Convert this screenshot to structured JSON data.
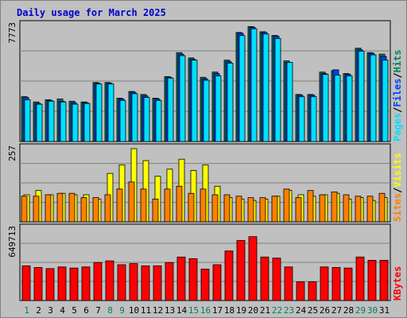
{
  "colors": {
    "frame": "#c0c0c0",
    "plot_bg": "#c0c0c0",
    "hits": "#00805a",
    "files": "#0040ff",
    "pages": "#00e0ff",
    "visits": "#ffff00",
    "sites": "#ff8000",
    "kbytes": "#ff0000",
    "title": "#0000cc",
    "weekend_label": "#00805a"
  },
  "chart_data": [
    {
      "type": "bar",
      "title": "Daily usage for March 2025",
      "ylabel_parts": [
        "Pages",
        "/",
        "Files",
        "/",
        "Hits"
      ],
      "ymax_label": "7773",
      "ylim": [
        0,
        7773
      ],
      "grid": true,
      "categories": [
        "1",
        "2",
        "3",
        "4",
        "5",
        "6",
        "7",
        "8",
        "9",
        "10",
        "11",
        "12",
        "13",
        "14",
        "15",
        "16",
        "17",
        "18",
        "19",
        "20",
        "21",
        "22",
        "23",
        "24",
        "25",
        "26",
        "27",
        "28",
        "29",
        "30",
        "31"
      ],
      "series": [
        {
          "name": "Hits",
          "values": [
            3000,
            2650,
            2800,
            2850,
            2700,
            2650,
            3950,
            3950,
            2900,
            3350,
            3150,
            2900,
            4350,
            5950,
            5600,
            4300,
            4650,
            5450,
            7300,
            7700,
            7350,
            7100,
            5400,
            3150,
            3150,
            4650,
            4750,
            4550,
            6250,
            5950,
            5850
          ]
        },
        {
          "name": "Files",
          "values": [
            2950,
            2550,
            2750,
            2700,
            2600,
            2600,
            3900,
            3900,
            2850,
            3300,
            3050,
            2850,
            4300,
            5850,
            5500,
            4200,
            4550,
            5350,
            7250,
            7650,
            7300,
            7050,
            5300,
            3100,
            3100,
            4550,
            4800,
            4500,
            6150,
            5900,
            5700
          ]
        },
        {
          "name": "Pages",
          "values": [
            2800,
            2500,
            2700,
            2650,
            2500,
            2550,
            3850,
            3850,
            2750,
            3200,
            2950,
            2750,
            4250,
            5750,
            5450,
            4100,
            4400,
            5250,
            7100,
            7550,
            7200,
            6900,
            5300,
            3000,
            3000,
            4500,
            4450,
            4400,
            6050,
            5800,
            5450
          ]
        }
      ]
    },
    {
      "type": "bar",
      "ylabel_parts": [
        "Sites",
        "/",
        "Visits"
      ],
      "ymax_label": "257",
      "ylim": [
        0,
        257
      ],
      "grid": true,
      "categories": [
        "1",
        "2",
        "3",
        "4",
        "5",
        "6",
        "7",
        "8",
        "9",
        "10",
        "11",
        "12",
        "13",
        "14",
        "15",
        "16",
        "17",
        "18",
        "19",
        "20",
        "21",
        "22",
        "23",
        "24",
        "25",
        "26",
        "27",
        "28",
        "29",
        "30",
        "31"
      ],
      "series": [
        {
          "name": "Visits",
          "values": [
            95,
            110,
            95,
            100,
            95,
            95,
            80,
            170,
            200,
            257,
            215,
            160,
            185,
            220,
            180,
            200,
            125,
            85,
            80,
            75,
            80,
            90,
            110,
            95,
            90,
            95,
            100,
            80,
            85,
            75,
            85
          ]
        },
        {
          "name": "Sites",
          "values": [
            90,
            90,
            95,
            100,
            100,
            85,
            85,
            95,
            115,
            140,
            115,
            80,
            115,
            125,
            100,
            115,
            95,
            95,
            90,
            85,
            85,
            90,
            115,
            85,
            110,
            95,
            105,
            95,
            90,
            90,
            100
          ]
        }
      ]
    },
    {
      "type": "bar",
      "ylabel_parts": [
        "KBytes"
      ],
      "ymax_label": "649713",
      "ylim": [
        0,
        649713
      ],
      "grid": true,
      "categories": [
        "1",
        "2",
        "3",
        "4",
        "5",
        "6",
        "7",
        "8",
        "9",
        "10",
        "11",
        "12",
        "13",
        "14",
        "15",
        "16",
        "17",
        "18",
        "19",
        "20",
        "21",
        "22",
        "23",
        "24",
        "25",
        "26",
        "27",
        "28",
        "29",
        "30",
        "31"
      ],
      "series": [
        {
          "name": "KBytes",
          "values": [
            315000,
            300000,
            290000,
            305000,
            295000,
            305000,
            345000,
            360000,
            325000,
            335000,
            315000,
            315000,
            345000,
            395000,
            380000,
            285000,
            325000,
            450000,
            545000,
            580000,
            395000,
            385000,
            305000,
            170000,
            170000,
            305000,
            300000,
            295000,
            395000,
            365000,
            365000
          ]
        }
      ]
    }
  ],
  "x_axis": {
    "labels": [
      "1",
      "2",
      "3",
      "4",
      "5",
      "6",
      "7",
      "8",
      "9",
      "10",
      "11",
      "12",
      "13",
      "14",
      "15",
      "16",
      "17",
      "18",
      "19",
      "20",
      "21",
      "22",
      "23",
      "24",
      "25",
      "26",
      "27",
      "28",
      "29",
      "30",
      "31"
    ],
    "weekend_days": [
      1,
      8,
      9,
      15,
      16,
      22,
      23,
      29,
      30
    ]
  }
}
